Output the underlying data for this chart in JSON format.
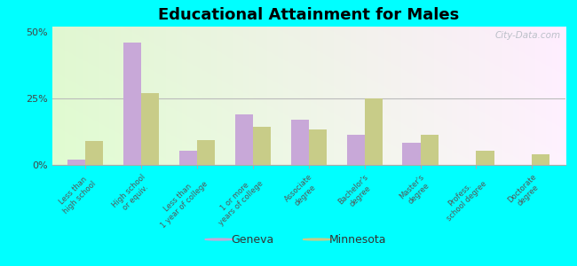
{
  "title": "Educational Attainment for Males",
  "categories": [
    "Less than\nhigh school",
    "High school\nor equiv.",
    "Less than\n1 year of college",
    "1 or more\nyears of college",
    "Associate\ndegree",
    "Bachelor's\ndegree",
    "Master's\ndegree",
    "Profess.\nschool degree",
    "Doctorate\ndegree"
  ],
  "geneva": [
    2.0,
    46.0,
    5.5,
    19.0,
    17.0,
    11.5,
    8.5,
    0.0,
    0.0
  ],
  "minnesota": [
    9.0,
    27.0,
    9.5,
    14.5,
    13.5,
    25.0,
    11.5,
    5.5,
    4.0
  ],
  "geneva_color": "#c8a8d8",
  "minnesota_color": "#c8cc88",
  "background_color": "#00ffff",
  "ylim": [
    0,
    52
  ],
  "yticks": [
    0,
    25,
    50
  ],
  "ytick_labels": [
    "0%",
    "25%",
    "50%"
  ],
  "bar_width": 0.32,
  "title_fontsize": 13,
  "legend_labels": [
    "Geneva",
    "Minnesota"
  ],
  "watermark": "City-Data.com"
}
